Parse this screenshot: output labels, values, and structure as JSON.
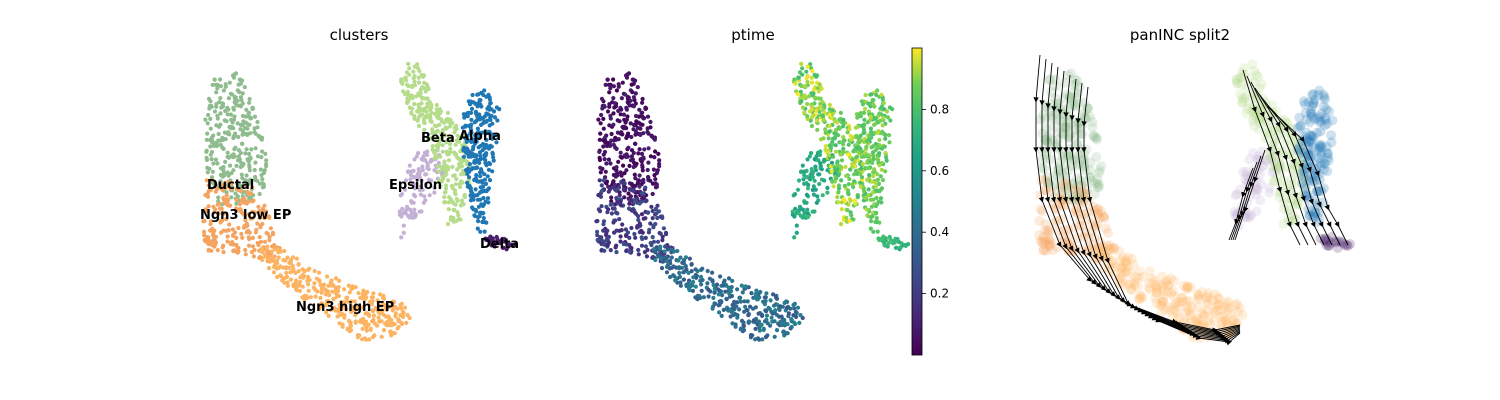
{
  "panels": [
    {
      "title": "clusters",
      "type": "scatter",
      "colorby": "category",
      "cluster_labels": [
        {
          "name": "Ductal",
          "color": "#8fbc8f"
        },
        {
          "name": "Ngn3 low EP",
          "color": "#f4a460"
        },
        {
          "name": "Ngn3 high EP",
          "color": "#fdb462"
        },
        {
          "name": "Epsilon",
          "color": "#c5b0d5"
        },
        {
          "name": "Beta",
          "color": "#b5dc8b"
        },
        {
          "name": "Alpha",
          "color": "#1f77b4"
        },
        {
          "name": "Delta",
          "color": "#4a1e6b"
        }
      ]
    },
    {
      "title": "ptime",
      "type": "scatter",
      "colorby": "continuous",
      "colormap": "viridis",
      "colorbar": {
        "min": 0.0,
        "max": 1.0,
        "ticks": [
          "0.2",
          "0.4",
          "0.6",
          "0.8"
        ],
        "tick_values": [
          0.2,
          0.4,
          0.6,
          0.8
        ]
      }
    },
    {
      "title": "panINC split2",
      "type": "streamplot",
      "colorby": "category"
    }
  ],
  "chart_data": [
    {
      "type": "scatter",
      "title": "clusters",
      "xlabel": "",
      "ylabel": "",
      "grid": false,
      "series": [
        {
          "name": "Ductal",
          "color": "#8fbc8f"
        },
        {
          "name": "Ngn3 low EP",
          "color": "#f4a460"
        },
        {
          "name": "Ngn3 high EP",
          "color": "#fdb462"
        },
        {
          "name": "Epsilon",
          "color": "#c5b0d5"
        },
        {
          "name": "Beta",
          "color": "#b5dc8b"
        },
        {
          "name": "Alpha",
          "color": "#1f77b4"
        },
        {
          "name": "Delta",
          "color": "#4a1e6b"
        }
      ]
    },
    {
      "type": "scatter",
      "title": "ptime",
      "xlabel": "",
      "ylabel": "",
      "grid": false,
      "colorbar_range": [
        0.0,
        1.0
      ]
    },
    {
      "type": "scatter",
      "title": "panINC split2",
      "xlabel": "",
      "ylabel": "",
      "grid": false
    }
  ]
}
